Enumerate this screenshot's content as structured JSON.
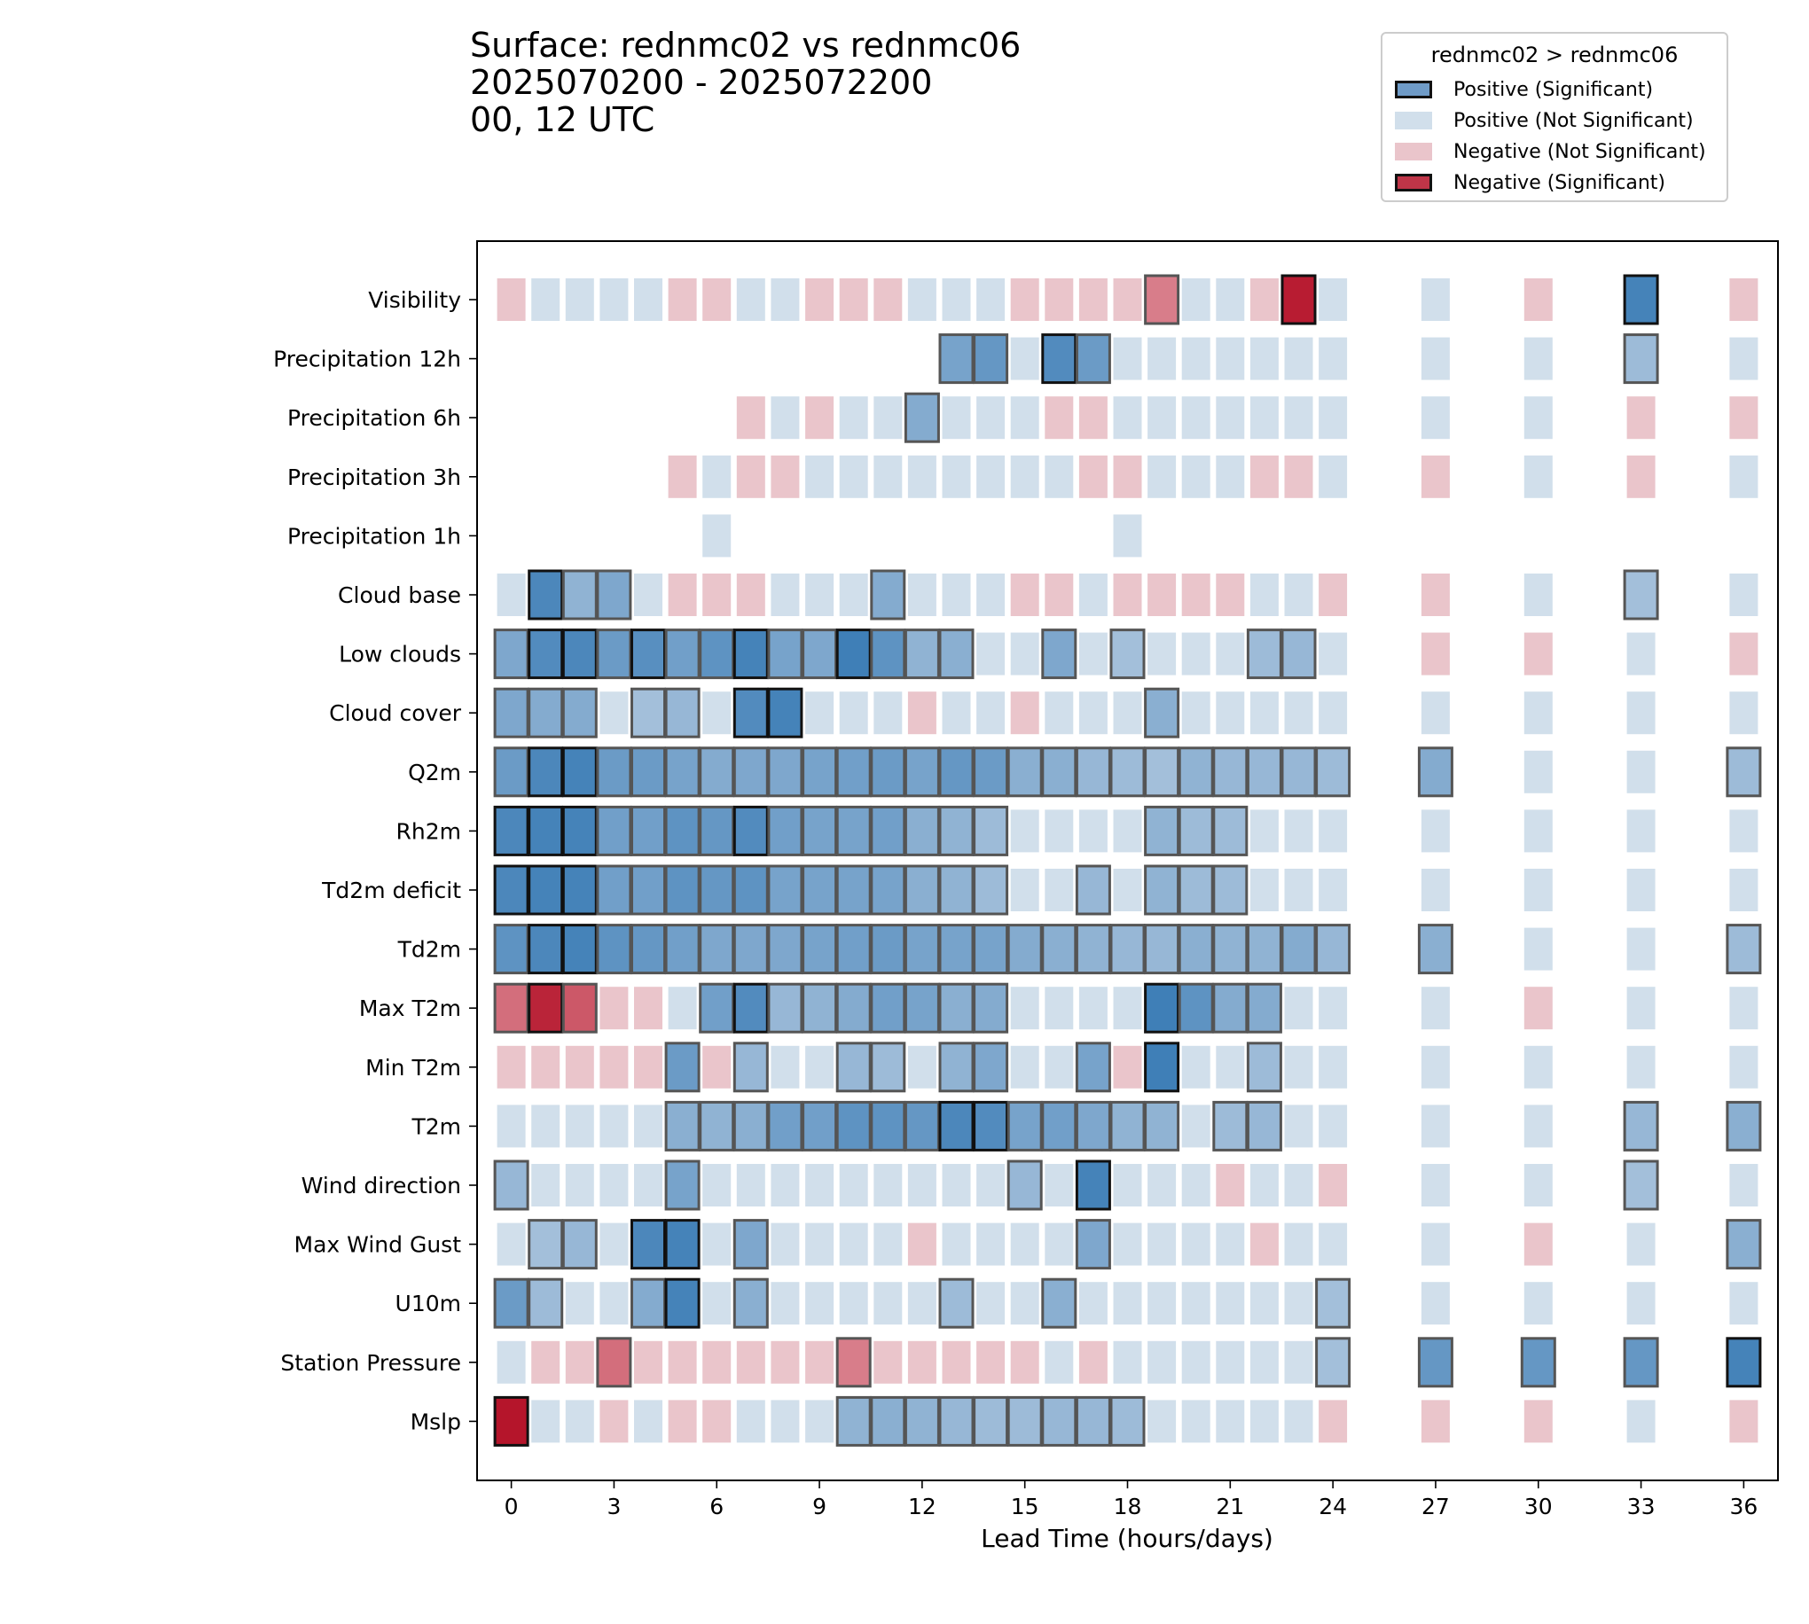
{
  "title_lines": [
    "Surface: rednmc02 vs rednmc06",
    "2025070200 - 2025072200",
    "00, 12 UTC"
  ],
  "colors": {
    "positive_strong": "#3f7fb7",
    "positive_light": "#a3bfda",
    "positive_ns": "#d1dfeb",
    "negative_strong": "#b5152b",
    "negative_light": "#dd8c97",
    "negative_ns": "#eac5cb"
  },
  "legend": {
    "title": "rednmc02 > rednmc06",
    "items": [
      {
        "label": "Positive (Significant)",
        "color": "#6f9bc7",
        "significant": true
      },
      {
        "label": "Positive (Not Significant)",
        "color": "#d1dfeb",
        "significant": false
      },
      {
        "label": "Negative (Not Significant)",
        "color": "#eac5cb",
        "significant": false
      },
      {
        "label": "Negative (Significant)",
        "color": "#bf3548",
        "significant": true
      }
    ]
  },
  "chart_data": {
    "type": "heatmap",
    "xlabel": "Lead Time (hours/days)",
    "x_ticks": [
      0,
      3,
      6,
      9,
      12,
      15,
      18,
      21,
      24,
      27,
      30,
      33,
      36
    ],
    "x_columns": [
      0,
      1,
      2,
      3,
      4,
      5,
      6,
      7,
      8,
      9,
      10,
      11,
      12,
      13,
      14,
      15,
      16,
      17,
      18,
      19,
      20,
      21,
      22,
      23,
      24,
      27,
      30,
      33,
      36
    ],
    "xlim": [
      -1,
      37
    ],
    "cell_encoding": "value in [-3, 3]; sign = direction (positive: rednmc02 > rednmc06); |value| > 1 = significant, intensity scaled by magnitude; null = no data",
    "rows": [
      {
        "name": "Visibility",
        "values": [
          -0.5,
          0.5,
          0.5,
          0.5,
          0.5,
          -0.5,
          -0.5,
          0.5,
          0.5,
          -0.5,
          -0.5,
          -0.5,
          0.5,
          0.5,
          0.5,
          -0.5,
          -0.5,
          -0.5,
          -0.5,
          -1.5,
          0.5,
          0.5,
          -0.5,
          -2.8,
          0.5,
          0.5,
          -0.5,
          2.8,
          -0.5
        ]
      },
      {
        "name": "Precipitation 12h",
        "values": [
          null,
          null,
          null,
          null,
          null,
          null,
          null,
          null,
          null,
          null,
          null,
          null,
          null,
          2.0,
          2.3,
          0.5,
          2.6,
          2.2,
          0.5,
          0.5,
          0.5,
          0.5,
          0.5,
          0.5,
          0.5,
          0.5,
          0.5,
          1.4,
          0.5
        ]
      },
      {
        "name": "Precipitation 6h",
        "values": [
          null,
          null,
          null,
          null,
          null,
          null,
          null,
          -0.5,
          0.5,
          -0.5,
          0.5,
          0.5,
          1.8,
          0.5,
          0.5,
          0.5,
          -0.5,
          -0.5,
          0.5,
          0.5,
          0.5,
          0.5,
          0.5,
          0.5,
          0.5,
          0.5,
          0.5,
          -0.5,
          -0.5
        ]
      },
      {
        "name": "Precipitation 3h",
        "values": [
          null,
          null,
          null,
          null,
          null,
          -0.5,
          0.5,
          -0.5,
          -0.5,
          0.5,
          0.5,
          0.5,
          0.5,
          0.5,
          0.5,
          0.5,
          0.5,
          -0.5,
          -0.5,
          0.5,
          0.5,
          0.5,
          -0.5,
          -0.5,
          0.5,
          -0.5,
          0.5,
          -0.5,
          0.5
        ]
      },
      {
        "name": "Precipitation 1h",
        "values": [
          null,
          null,
          null,
          null,
          null,
          null,
          0.5,
          null,
          null,
          null,
          null,
          null,
          null,
          null,
          null,
          null,
          null,
          null,
          0.5,
          null,
          null,
          null,
          null,
          null,
          null,
          null,
          null,
          null,
          null
        ]
      },
      {
        "name": "Cloud base",
        "values": [
          0.5,
          2.7,
          1.6,
          1.9,
          0.5,
          -0.5,
          -0.5,
          -0.5,
          0.5,
          0.5,
          0.5,
          1.8,
          0.5,
          0.5,
          0.5,
          -0.5,
          -0.5,
          0.5,
          -0.5,
          -0.5,
          -0.5,
          -0.5,
          0.5,
          0.5,
          -0.5,
          -0.5,
          0.5,
          1.3,
          0.5
        ]
      },
      {
        "name": "Low clouds",
        "values": [
          1.9,
          2.6,
          2.7,
          2.2,
          2.5,
          2.1,
          2.4,
          2.8,
          2.0,
          1.9,
          2.9,
          2.4,
          1.6,
          1.7,
          0.5,
          0.5,
          1.9,
          0.5,
          1.3,
          0.5,
          0.5,
          0.5,
          1.4,
          1.5,
          0.5,
          -0.5,
          -0.5,
          0.5,
          -0.5
        ]
      },
      {
        "name": "Cloud cover",
        "values": [
          1.9,
          1.8,
          1.8,
          0.5,
          1.3,
          1.5,
          0.5,
          2.6,
          2.8,
          0.5,
          0.5,
          0.5,
          -0.5,
          0.5,
          0.5,
          -0.5,
          0.5,
          0.5,
          0.5,
          1.7,
          0.5,
          0.5,
          0.5,
          0.5,
          0.5,
          0.5,
          0.5,
          0.5,
          0.5
        ]
      },
      {
        "name": "Q2m",
        "values": [
          2.2,
          2.7,
          2.8,
          2.2,
          2.2,
          2.0,
          1.8,
          1.9,
          1.9,
          2.0,
          2.1,
          2.2,
          2.0,
          2.3,
          2.2,
          1.7,
          1.7,
          1.5,
          1.4,
          1.3,
          1.6,
          1.5,
          1.5,
          1.5,
          1.4,
          1.8,
          0.5,
          0.5,
          1.4
        ]
      },
      {
        "name": "Rh2m",
        "values": [
          2.7,
          2.8,
          2.8,
          2.1,
          2.1,
          2.4,
          2.3,
          2.6,
          2.1,
          2.0,
          2.0,
          2.1,
          1.7,
          1.6,
          1.4,
          0.5,
          0.5,
          0.5,
          0.5,
          1.6,
          1.4,
          1.4,
          0.5,
          0.5,
          0.5,
          0.5,
          0.5,
          0.5,
          0.5
        ]
      },
      {
        "name": "Td2m deficit",
        "values": [
          2.7,
          2.8,
          2.8,
          2.1,
          2.1,
          2.4,
          2.3,
          2.4,
          2.0,
          2.0,
          2.0,
          2.0,
          1.7,
          1.6,
          1.4,
          0.5,
          0.5,
          1.5,
          0.5,
          1.6,
          1.4,
          1.4,
          0.5,
          0.5,
          0.5,
          0.5,
          0.5,
          0.5,
          0.5
        ]
      },
      {
        "name": "Td2m",
        "values": [
          2.4,
          2.7,
          2.8,
          2.4,
          2.3,
          2.1,
          1.9,
          1.9,
          1.9,
          2.0,
          2.1,
          2.2,
          2.0,
          2.0,
          2.0,
          1.8,
          1.7,
          1.6,
          1.5,
          1.5,
          1.7,
          1.6,
          1.6,
          1.8,
          1.5,
          1.7,
          0.5,
          0.5,
          1.4
        ]
      },
      {
        "name": "Max T2m",
        "values": [
          -1.7,
          -2.7,
          -2.0,
          -0.5,
          -0.5,
          0.5,
          2.1,
          2.6,
          1.5,
          1.6,
          1.8,
          2.1,
          2.0,
          1.7,
          1.8,
          0.5,
          0.5,
          0.5,
          0.5,
          2.9,
          2.4,
          1.8,
          1.8,
          0.5,
          0.5,
          0.5,
          -0.5,
          0.5,
          0.5
        ]
      },
      {
        "name": "Min T2m",
        "values": [
          -0.5,
          -0.5,
          -0.5,
          -0.5,
          -0.5,
          2.2,
          -0.5,
          1.5,
          0.5,
          0.5,
          1.5,
          1.4,
          0.5,
          1.6,
          1.9,
          0.5,
          0.5,
          2.0,
          -0.5,
          2.9,
          0.5,
          0.5,
          1.4,
          0.5,
          0.5,
          0.5,
          0.5,
          0.5,
          0.5
        ]
      },
      {
        "name": "T2m",
        "values": [
          0.5,
          0.5,
          0.5,
          0.5,
          0.5,
          1.7,
          1.6,
          1.7,
          2.1,
          2.1,
          2.4,
          2.4,
          2.3,
          2.7,
          2.6,
          2.0,
          2.1,
          1.9,
          1.6,
          1.6,
          0.5,
          1.4,
          1.5,
          0.5,
          0.5,
          0.5,
          0.5,
          1.5,
          1.7
        ]
      },
      {
        "name": "Wind direction",
        "values": [
          1.5,
          0.5,
          0.5,
          0.5,
          0.5,
          2.0,
          0.5,
          0.5,
          0.5,
          0.5,
          0.5,
          0.5,
          0.5,
          0.5,
          0.5,
          1.5,
          0.5,
          2.8,
          0.5,
          0.5,
          0.5,
          -0.5,
          0.5,
          0.5,
          -0.5,
          0.5,
          0.5,
          1.3,
          0.5
        ]
      },
      {
        "name": "Max Wind Gust",
        "values": [
          0.5,
          1.3,
          1.5,
          0.5,
          2.7,
          2.8,
          0.5,
          1.9,
          0.5,
          0.5,
          0.5,
          0.5,
          -0.5,
          0.5,
          0.5,
          0.5,
          0.5,
          1.9,
          0.5,
          0.5,
          0.5,
          0.5,
          -0.5,
          0.5,
          0.5,
          0.5,
          -0.5,
          0.5,
          1.7
        ]
      },
      {
        "name": "U10m",
        "values": [
          2.2,
          1.4,
          0.5,
          0.5,
          1.8,
          2.8,
          0.5,
          1.7,
          0.5,
          0.5,
          0.5,
          0.5,
          0.5,
          1.4,
          0.5,
          0.5,
          1.7,
          0.5,
          0.5,
          0.5,
          0.5,
          0.5,
          0.5,
          0.5,
          1.3,
          0.5,
          0.5,
          0.5,
          0.5
        ]
      },
      {
        "name": "Station Pressure",
        "values": [
          0.5,
          -0.5,
          -0.5,
          -1.7,
          -0.5,
          -0.5,
          -0.5,
          -0.5,
          -0.5,
          -0.5,
          -1.5,
          -0.5,
          -0.5,
          -0.5,
          -0.5,
          -0.5,
          0.5,
          -0.5,
          0.5,
          0.5,
          0.5,
          0.5,
          0.5,
          0.5,
          1.3,
          2.3,
          2.3,
          2.3,
          2.8
        ]
      },
      {
        "name": "Mslp",
        "values": [
          -3.0,
          0.5,
          0.5,
          -0.5,
          0.5,
          -0.5,
          -0.5,
          0.5,
          0.5,
          0.5,
          1.6,
          1.7,
          1.6,
          1.5,
          1.4,
          1.4,
          1.5,
          1.5,
          1.4,
          0.5,
          0.5,
          0.5,
          0.5,
          0.5,
          -0.5,
          -0.5,
          -0.5,
          0.5,
          -0.5
        ]
      }
    ]
  }
}
